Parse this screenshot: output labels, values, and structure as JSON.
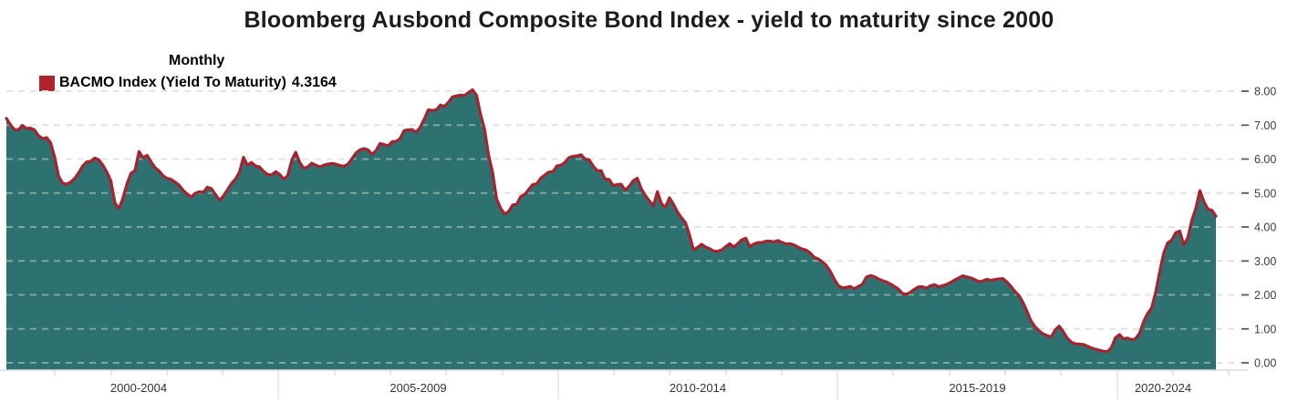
{
  "title": "Bloomberg Ausbond Composite Bond Index - yield to maturity since 2000",
  "legend": {
    "period_label": "Monthly",
    "series_label": "BACMO Index (Yield To Maturity)",
    "last_value": "4.3164",
    "swatch_color": "#b0222c"
  },
  "colors": {
    "area_fill": "#2d7270",
    "line": "#a5242f",
    "grid": "#d4d4d4",
    "grid_over_fill": "rgba(255,255,255,0.38)",
    "axis_text": "#3d3d3d",
    "x_label_text": "#333333"
  },
  "y_axis": {
    "ticks": [
      "8.00",
      "7.00",
      "6.00",
      "5.00",
      "4.00",
      "3.00",
      "2.00",
      "1.00",
      "0.00"
    ],
    "min": 0,
    "max": 8
  },
  "x_axis": {
    "group_labels": [
      "2000-2004",
      "2005-2009",
      "2010-2014",
      "2015-2019",
      "2020-2024"
    ]
  },
  "chart_data": {
    "type": "area",
    "title": "Bloomberg Ausbond Composite Bond Index - yield to maturity since 2000",
    "frequency": "Monthly",
    "x_start": "2000-01",
    "x_end": "2025-02",
    "ylim": [
      0,
      8
    ],
    "grid": "dashed-horizontal",
    "legend_position": "top-left",
    "series": [
      {
        "name": "BACMO Index (Yield To Maturity)",
        "last_value": 4.3164,
        "values": [
          7.2,
          7.01,
          6.87,
          6.86,
          6.99,
          6.9,
          6.91,
          6.86,
          6.69,
          6.6,
          6.63,
          6.48,
          6.06,
          5.49,
          5.29,
          5.26,
          5.32,
          5.43,
          5.6,
          5.8,
          5.92,
          5.93,
          6.03,
          5.98,
          5.82,
          5.62,
          5.36,
          4.72,
          4.54,
          4.85,
          5.27,
          5.58,
          5.66,
          6.22,
          6.04,
          6.11,
          5.92,
          5.75,
          5.65,
          5.51,
          5.43,
          5.4,
          5.32,
          5.23,
          5.08,
          4.97,
          4.88,
          4.99,
          5.04,
          5.02,
          5.17,
          5.13,
          4.96,
          4.79,
          4.91,
          5.09,
          5.28,
          5.41,
          5.61,
          6.05,
          5.82,
          5.9,
          5.8,
          5.77,
          5.64,
          5.55,
          5.53,
          5.63,
          5.55,
          5.41,
          5.51,
          5.96,
          6.2,
          5.9,
          5.73,
          5.77,
          5.88,
          5.82,
          5.77,
          5.82,
          5.85,
          5.87,
          5.85,
          5.81,
          5.79,
          5.85,
          6.01,
          6.18,
          6.27,
          6.31,
          6.27,
          6.14,
          6.25,
          6.46,
          6.43,
          6.39,
          6.51,
          6.52,
          6.61,
          6.84,
          6.86,
          6.87,
          6.79,
          6.94,
          7.18,
          7.45,
          7.43,
          7.45,
          7.59,
          7.55,
          7.67,
          7.83,
          7.86,
          7.88,
          7.87,
          7.96,
          8.04,
          7.88,
          7.32,
          6.88,
          6.12,
          5.61,
          4.83,
          4.55,
          4.38,
          4.46,
          4.65,
          4.67,
          4.9,
          4.96,
          5.11,
          5.25,
          5.27,
          5.44,
          5.53,
          5.62,
          5.63,
          5.8,
          5.82,
          5.9,
          6.04,
          6.08,
          6.09,
          6.13,
          6.0,
          5.98,
          5.8,
          5.66,
          5.66,
          5.41,
          5.4,
          5.22,
          5.25,
          5.26,
          5.08,
          5.2,
          5.36,
          5.44,
          5.13,
          4.93,
          4.77,
          4.62,
          5.04,
          4.69,
          4.58,
          4.86,
          4.67,
          4.44,
          4.27,
          4.13,
          3.77,
          3.32,
          3.4,
          3.49,
          3.41,
          3.36,
          3.29,
          3.28,
          3.32,
          3.42,
          3.51,
          3.41,
          3.51,
          3.62,
          3.67,
          3.42,
          3.5,
          3.54,
          3.54,
          3.58,
          3.58,
          3.56,
          3.6,
          3.55,
          3.5,
          3.51,
          3.47,
          3.41,
          3.35,
          3.32,
          3.24,
          3.11,
          3.06,
          2.98,
          2.87,
          2.7,
          2.47,
          2.28,
          2.21,
          2.22,
          2.25,
          2.18,
          2.25,
          2.31,
          2.52,
          2.57,
          2.54,
          2.47,
          2.42,
          2.38,
          2.32,
          2.25,
          2.17,
          2.04,
          2.02,
          2.08,
          2.17,
          2.24,
          2.24,
          2.2,
          2.27,
          2.3,
          2.24,
          2.27,
          2.31,
          2.37,
          2.44,
          2.5,
          2.56,
          2.53,
          2.5,
          2.45,
          2.39,
          2.41,
          2.46,
          2.43,
          2.45,
          2.47,
          2.48,
          2.38,
          2.25,
          2.1,
          1.98,
          1.78,
          1.51,
          1.23,
          1.06,
          0.94,
          0.85,
          0.8,
          0.76,
          0.97,
          1.08,
          0.92,
          0.73,
          0.61,
          0.56,
          0.55,
          0.54,
          0.49,
          0.44,
          0.4,
          0.37,
          0.34,
          0.33,
          0.45,
          0.74,
          0.83,
          0.71,
          0.73,
          0.68,
          0.71,
          0.87,
          1.21,
          1.45,
          1.61,
          2.07,
          2.67,
          3.22,
          3.53,
          3.61,
          3.83,
          3.88,
          3.48,
          3.68,
          4.2,
          4.55,
          5.07,
          4.75,
          4.53,
          4.49,
          4.3164
        ]
      }
    ]
  }
}
